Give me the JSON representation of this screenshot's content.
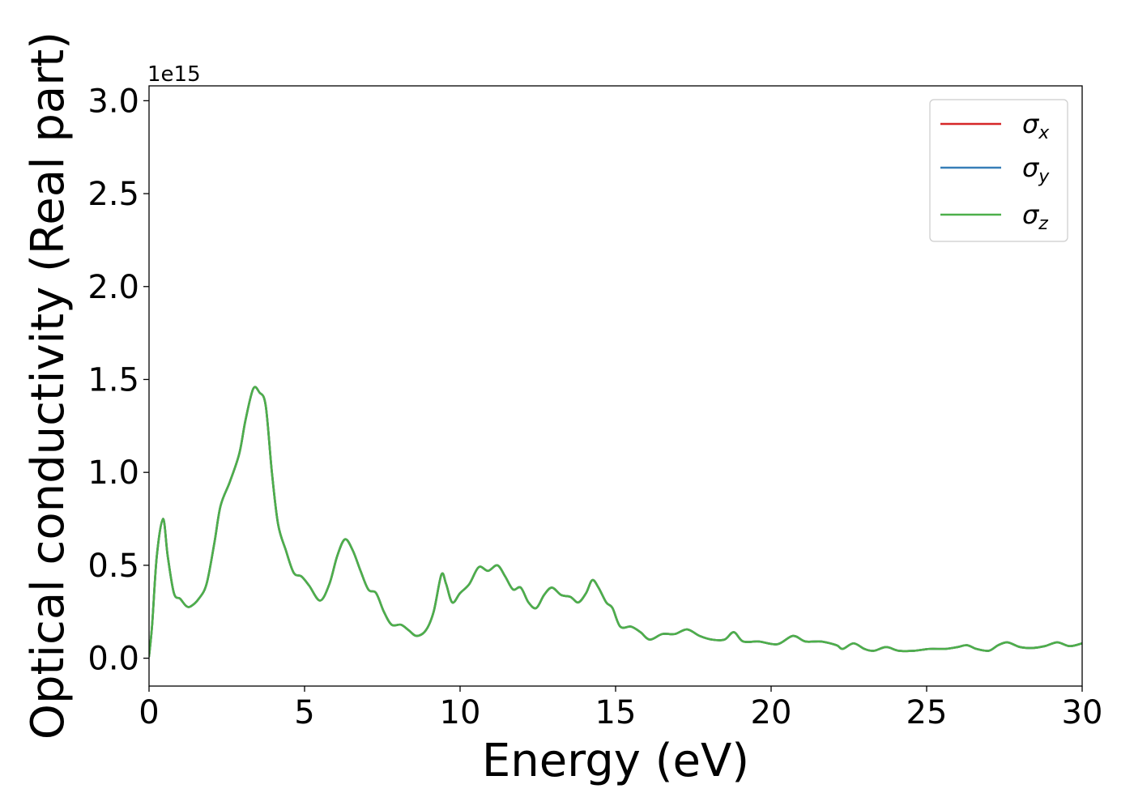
{
  "chart_data": {
    "type": "line",
    "title": "",
    "xlabel": "Energy (eV)",
    "ylabel": "Optical conductivity (Real part)",
    "y_offset_label": "1e15",
    "xlim": [
      0,
      30
    ],
    "ylim": [
      -0.15,
      3.08
    ],
    "x_ticks": [
      0,
      5,
      10,
      15,
      20,
      25,
      30
    ],
    "x_tick_labels": [
      "0",
      "5",
      "10",
      "15",
      "20",
      "25",
      "30"
    ],
    "y_ticks": [
      0.0,
      0.5,
      1.0,
      1.5,
      2.0,
      2.5,
      3.0
    ],
    "y_tick_labels": [
      "0.0",
      "0.5",
      "1.0",
      "1.5",
      "2.0",
      "2.5",
      "3.0"
    ],
    "grid": false,
    "legend_position": "top-right",
    "x": [
      0,
      0.1,
      0.25,
      0.45,
      0.6,
      0.8,
      1.0,
      1.2,
      1.35,
      1.6,
      1.85,
      2.1,
      2.3,
      2.6,
      2.9,
      3.1,
      3.35,
      3.55,
      3.75,
      3.95,
      4.15,
      4.4,
      4.65,
      4.9,
      5.15,
      5.5,
      5.8,
      6.05,
      6.3,
      6.55,
      6.8,
      7.05,
      7.3,
      7.55,
      7.8,
      8.1,
      8.35,
      8.6,
      8.9,
      9.15,
      9.4,
      9.55,
      9.75,
      10.0,
      10.3,
      10.6,
      10.9,
      11.2,
      11.45,
      11.7,
      11.95,
      12.2,
      12.45,
      12.7,
      12.95,
      13.25,
      13.55,
      13.8,
      14.05,
      14.25,
      14.45,
      14.7,
      14.9,
      15.15,
      15.5,
      15.8,
      16.1,
      16.5,
      16.9,
      17.3,
      17.7,
      18.1,
      18.5,
      18.8,
      19.1,
      19.6,
      20.2,
      20.7,
      21.1,
      21.6,
      22.1,
      22.3,
      22.65,
      23.0,
      23.3,
      23.7,
      24.1,
      24.6,
      25.1,
      25.6,
      26.0,
      26.3,
      26.6,
      27.0,
      27.3,
      27.6,
      28.0,
      28.4,
      28.8,
      29.2,
      29.6,
      30.0
    ],
    "series": [
      {
        "name": "σx",
        "color": "#d62728",
        "values": [
          0.01,
          0.18,
          0.55,
          0.75,
          0.55,
          0.35,
          0.32,
          0.28,
          0.28,
          0.32,
          0.4,
          0.62,
          0.82,
          0.95,
          1.1,
          1.28,
          1.45,
          1.43,
          1.36,
          1.0,
          0.72,
          0.58,
          0.46,
          0.44,
          0.39,
          0.31,
          0.4,
          0.55,
          0.64,
          0.58,
          0.47,
          0.37,
          0.35,
          0.25,
          0.18,
          0.18,
          0.15,
          0.12,
          0.15,
          0.25,
          0.45,
          0.4,
          0.3,
          0.35,
          0.4,
          0.49,
          0.47,
          0.5,
          0.44,
          0.37,
          0.38,
          0.3,
          0.27,
          0.34,
          0.38,
          0.34,
          0.33,
          0.3,
          0.35,
          0.42,
          0.38,
          0.3,
          0.27,
          0.17,
          0.17,
          0.14,
          0.1,
          0.13,
          0.13,
          0.155,
          0.12,
          0.1,
          0.1,
          0.14,
          0.09,
          0.09,
          0.075,
          0.12,
          0.09,
          0.09,
          0.07,
          0.05,
          0.08,
          0.05,
          0.04,
          0.06,
          0.04,
          0.04,
          0.05,
          0.05,
          0.06,
          0.07,
          0.05,
          0.04,
          0.07,
          0.085,
          0.06,
          0.055,
          0.065,
          0.085,
          0.065,
          0.08
        ]
      },
      {
        "name": "σy",
        "color": "#377eb8",
        "values": [
          0.01,
          0.18,
          0.55,
          0.75,
          0.55,
          0.35,
          0.32,
          0.28,
          0.28,
          0.32,
          0.4,
          0.62,
          0.82,
          0.95,
          1.1,
          1.28,
          1.45,
          1.43,
          1.36,
          1.0,
          0.72,
          0.58,
          0.46,
          0.44,
          0.39,
          0.31,
          0.4,
          0.55,
          0.64,
          0.58,
          0.47,
          0.37,
          0.35,
          0.25,
          0.18,
          0.18,
          0.15,
          0.12,
          0.15,
          0.25,
          0.45,
          0.4,
          0.3,
          0.35,
          0.4,
          0.49,
          0.47,
          0.5,
          0.44,
          0.37,
          0.38,
          0.3,
          0.27,
          0.34,
          0.38,
          0.34,
          0.33,
          0.3,
          0.35,
          0.42,
          0.38,
          0.3,
          0.27,
          0.17,
          0.17,
          0.14,
          0.1,
          0.13,
          0.13,
          0.155,
          0.12,
          0.1,
          0.1,
          0.14,
          0.09,
          0.09,
          0.075,
          0.12,
          0.09,
          0.09,
          0.07,
          0.05,
          0.08,
          0.05,
          0.04,
          0.06,
          0.04,
          0.04,
          0.05,
          0.05,
          0.06,
          0.07,
          0.05,
          0.04,
          0.07,
          0.085,
          0.06,
          0.055,
          0.065,
          0.085,
          0.065,
          0.08
        ]
      },
      {
        "name": "σz",
        "color": "#4daf4a",
        "values": [
          0.01,
          0.18,
          0.55,
          0.75,
          0.55,
          0.35,
          0.32,
          0.28,
          0.28,
          0.32,
          0.4,
          0.62,
          0.82,
          0.95,
          1.1,
          1.28,
          1.45,
          1.43,
          1.36,
          1.0,
          0.72,
          0.58,
          0.46,
          0.44,
          0.39,
          0.31,
          0.4,
          0.55,
          0.64,
          0.58,
          0.47,
          0.37,
          0.35,
          0.25,
          0.18,
          0.18,
          0.15,
          0.12,
          0.15,
          0.25,
          0.45,
          0.4,
          0.3,
          0.35,
          0.4,
          0.49,
          0.47,
          0.5,
          0.44,
          0.37,
          0.38,
          0.3,
          0.27,
          0.34,
          0.38,
          0.34,
          0.33,
          0.3,
          0.35,
          0.42,
          0.38,
          0.3,
          0.27,
          0.17,
          0.17,
          0.14,
          0.1,
          0.13,
          0.13,
          0.155,
          0.12,
          0.1,
          0.1,
          0.14,
          0.09,
          0.09,
          0.075,
          0.12,
          0.09,
          0.09,
          0.07,
          0.05,
          0.08,
          0.05,
          0.04,
          0.06,
          0.04,
          0.04,
          0.05,
          0.05,
          0.06,
          0.07,
          0.05,
          0.04,
          0.07,
          0.085,
          0.06,
          0.055,
          0.065,
          0.085,
          0.065,
          0.08
        ]
      }
    ],
    "legend": [
      {
        "base": "σ",
        "sub": "x",
        "color": "#d62728"
      },
      {
        "base": "σ",
        "sub": "y",
        "color": "#377eb8"
      },
      {
        "base": "σ",
        "sub": "z",
        "color": "#4daf4a"
      }
    ]
  }
}
